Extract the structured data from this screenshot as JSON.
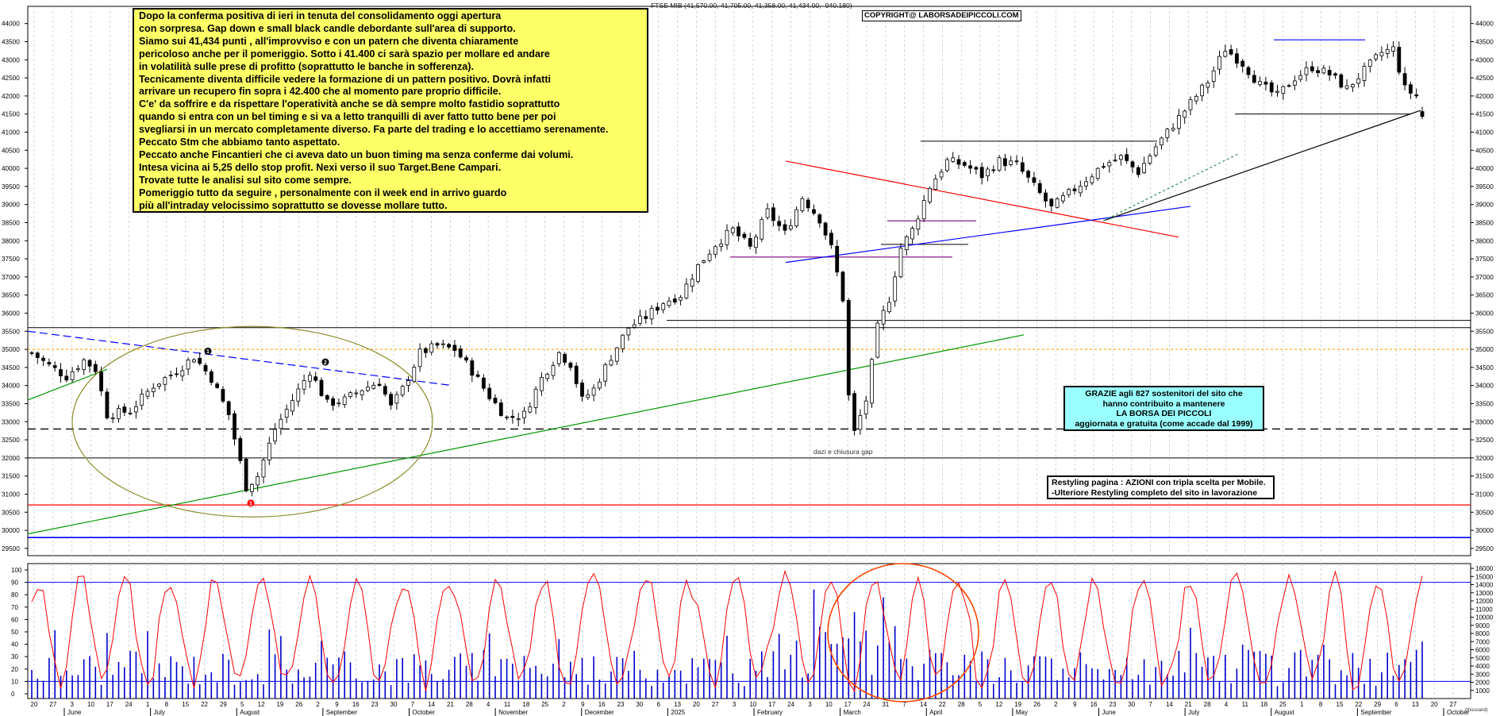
{
  "header": {
    "ohlc": "FTSE MIB (41,570.00, 41,705.00, 41,358.00, 41,434.00, -940.180)",
    "copyright": "COPYRIGHT@ LABORSADEIPICCOLI.COM"
  },
  "commentary": {
    "lines": [
      "Dopo la conferma positiva di ieri in tenuta del consolidamento oggi apertura",
      "con sorpresa. Gap down e small black candle debordante sull'area di supporto.",
      "Siamo sui 41,434 punti , all'improvviso e con un patern che  diventa chiaramente",
      "pericoloso anche per il pomeriggio. Sotto i 41.400 ci sarà spazio per mollare ed andare",
      "in volatilità sulle prese di profitto (soprattutto le banche in sofferenza).",
      "Tecnicamente diventa difficile vedere la formazione di un pattern positivo. Dovrà infatti",
      "arrivare un recupero fin sopra i 42.400 che al momento pare proprio difficile.",
      "C'e' da soffrire e da rispettare l'operatività anche se dà sempre molto fastidio soprattutto",
      "quando si entra con un bel timing e si va a letto tranquilli di aver fatto tutto bene per poi",
      "svegliarsi in un mercato completamente diverso.  Fa parte del trading  e lo accettiamo serenamente.",
      "Peccato Stm che abbiamo tanto aspettato.",
      "Peccato anche Fincantieri che ci aveva dato un buon timing ma senza conferme dai volumi.",
      "Intesa vicina ai 5,25 dello stop profit. Nexi verso il suo Target.Bene Campari.",
      "Trovate tutte le analisi sul sito come sempre.",
      "Pomeriggio tutto da seguire , personalmente con il week end in arrivo guardo",
      "più all'intraday velocissimo soprattutto se dovesse mollare tutto."
    ]
  },
  "thanks_box": {
    "lines": [
      "GRAZIE agli 827  sostenitori del sito che",
      "hanno contribuito a mantenere",
      "LA BORSA DEI PICCOLI",
      "aggiornata e gratuita (come accade dal 1999)"
    ]
  },
  "restyle_box": {
    "lines": [
      "Restyling pagina : AZIONI con tripla scelta per Mobile.",
      "-Ulteriore Restyling completo del sito in lavorazione"
    ]
  },
  "gap_label": "dazi e chiusura gap",
  "corner_tag": "(thousand)",
  "colors": {
    "candle_body": "#000000",
    "trend_red": "#ff0000",
    "trend_blue": "#0000ff",
    "trend_green": "#009900",
    "ellipse_olive": "#8b8b2a",
    "oscillator": "#ff0000",
    "volume": "#0000cc",
    "circle_orange": "#ff4500",
    "level_orange_dotted": "#ffa500",
    "note_yellow": "#ffff66",
    "note_cyan": "#99ffff"
  },
  "chart_data": [
    {
      "type": "candlestick",
      "title": "FTSE MIB",
      "price_axis": {
        "ticks": [
          "29500",
          "30000",
          "30500",
          "31000",
          "31500",
          "32000",
          "32500",
          "33000",
          "33500",
          "34000",
          "34500",
          "35000",
          "35500",
          "36000",
          "36500",
          "37000",
          "37500",
          "38000",
          "38500",
          "39000",
          "39500",
          "40000",
          "40500",
          "41000",
          "41500",
          "42000",
          "42500",
          "43000",
          "43500",
          "44000"
        ],
        "range": [
          29300,
          44300
        ]
      },
      "x_axis": {
        "day_labels": [
          "20",
          "27",
          "3",
          "10",
          "17",
          "24",
          "1",
          "8",
          "15",
          "22",
          "29",
          "5",
          "12",
          "19",
          "26",
          "2",
          "9",
          "16",
          "23",
          "30",
          "7",
          "14",
          "21",
          "28",
          "4",
          "11",
          "18",
          "25",
          "2",
          "9",
          "16",
          "23",
          "30",
          "6",
          "13",
          "20",
          "27",
          "3",
          "10",
          "17",
          "24",
          "3",
          "10",
          "17",
          "24",
          "31",
          "7",
          "14",
          "22",
          "28",
          "5",
          "12",
          "19",
          "26",
          "2",
          "9",
          "16",
          "23",
          "30",
          "7",
          "14",
          "21",
          "28",
          "4",
          "11",
          "18",
          "25",
          "1",
          "8",
          "15",
          "22",
          "29",
          "6",
          "13",
          "20",
          "27"
        ],
        "month_labels": [
          "June",
          "July",
          "August",
          "September",
          "October",
          "November",
          "December",
          "2025",
          "February",
          "March",
          "April",
          "May",
          "June",
          "July",
          "August",
          "September",
          "October"
        ]
      },
      "anchor_prices": [
        [
          0,
          34900
        ],
        [
          3,
          34550
        ],
        [
          6,
          34250
        ],
        [
          9,
          34700
        ],
        [
          11,
          34450
        ],
        [
          13,
          33200
        ],
        [
          17,
          33300
        ],
        [
          21,
          34000
        ],
        [
          25,
          34400
        ],
        [
          28,
          34800
        ],
        [
          31,
          34200
        ],
        [
          34,
          33200
        ],
        [
          37,
          31200
        ],
        [
          39,
          31500
        ],
        [
          42,
          32800
        ],
        [
          45,
          33600
        ],
        [
          48,
          34400
        ],
        [
          51,
          33500
        ],
        [
          54,
          33600
        ],
        [
          57,
          33900
        ],
        [
          60,
          34100
        ],
        [
          62,
          33400
        ],
        [
          64,
          33900
        ],
        [
          67,
          34900
        ],
        [
          70,
          35100
        ],
        [
          73,
          35000
        ],
        [
          76,
          34400
        ],
        [
          79,
          33700
        ],
        [
          82,
          33100
        ],
        [
          85,
          33200
        ],
        [
          88,
          34200
        ],
        [
          91,
          34900
        ],
        [
          93,
          34600
        ],
        [
          95,
          33600
        ],
        [
          97,
          33900
        ],
        [
          100,
          34800
        ],
        [
          103,
          35600
        ],
        [
          106,
          35900
        ],
        [
          109,
          36300
        ],
        [
          112,
          36500
        ],
        [
          115,
          37300
        ],
        [
          118,
          37900
        ],
        [
          121,
          38300
        ],
        [
          124,
          37800
        ],
        [
          127,
          38800
        ],
        [
          130,
          38200
        ],
        [
          133,
          39200
        ],
        [
          136,
          38600
        ],
        [
          138,
          37800
        ],
        [
          140,
          36400
        ],
        [
          141,
          33700
        ],
        [
          142,
          32700
        ],
        [
          144,
          33600
        ],
        [
          146,
          35600
        ],
        [
          148,
          36400
        ],
        [
          150,
          37800
        ],
        [
          152,
          38300
        ],
        [
          155,
          39500
        ],
        [
          158,
          40200
        ],
        [
          161,
          40100
        ],
        [
          164,
          39800
        ],
        [
          167,
          40200
        ],
        [
          170,
          40100
        ],
        [
          173,
          39500
        ],
        [
          176,
          38900
        ],
        [
          179,
          39300
        ],
        [
          182,
          39700
        ],
        [
          185,
          40100
        ],
        [
          188,
          40300
        ],
        [
          191,
          39900
        ],
        [
          194,
          40600
        ],
        [
          197,
          41200
        ],
        [
          200,
          41800
        ],
        [
          203,
          42400
        ],
        [
          206,
          43300
        ],
        [
          209,
          42900
        ],
        [
          212,
          42300
        ],
        [
          215,
          42000
        ],
        [
          218,
          42500
        ],
        [
          221,
          42800
        ],
        [
          224,
          42600
        ],
        [
          227,
          42200
        ],
        [
          230,
          42700
        ],
        [
          233,
          43200
        ],
        [
          235,
          43300
        ],
        [
          237,
          42200
        ],
        [
          239,
          42000
        ],
        [
          240,
          41500
        ]
      ],
      "last": {
        "open": 41570,
        "high": 41705,
        "low": 41358,
        "close": 41434,
        "change": -940.18
      },
      "markers": [
        "1",
        "2",
        "1"
      ]
    },
    {
      "type": "line",
      "name": "oscillator",
      "y_ticks": [
        "0",
        "10",
        "20",
        "30",
        "40",
        "50",
        "60",
        "70",
        "80",
        "90",
        "100"
      ],
      "ylim": [
        0,
        100
      ],
      "reference_levels": [
        10,
        90
      ]
    },
    {
      "type": "bar",
      "name": "volume",
      "y_ticks": [
        "1000",
        "2000",
        "3000",
        "4000",
        "5000",
        "6000",
        "7000",
        "8000",
        "9000",
        "10000",
        "11000",
        "12000",
        "13000",
        "14000",
        "15000",
        "16000"
      ],
      "ylim": [
        0,
        16000
      ]
    }
  ]
}
